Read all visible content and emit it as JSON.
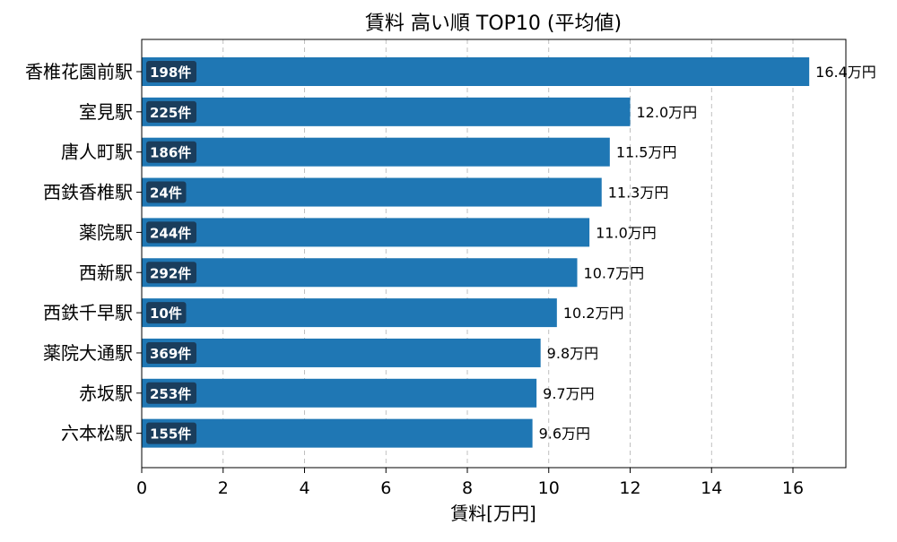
{
  "chart_data": {
    "type": "bar",
    "orientation": "horizontal",
    "title": "賃料 高い順 TOP10 (平均値)",
    "xlabel": "賃料[万円]",
    "ylabel": "",
    "xlim": [
      0,
      17.3
    ],
    "xticks": [
      0,
      2,
      4,
      6,
      8,
      10,
      12,
      14,
      16
    ],
    "grid": "x-dashed",
    "value_suffix": "万円",
    "count_suffix": "件",
    "bar_color": "#1f77b4",
    "badge_color": "#1a3d5c",
    "categories": [
      "香椎花園前駅",
      "室見駅",
      "唐人町駅",
      "西鉄香椎駅",
      "薬院駅",
      "西新駅",
      "西鉄千早駅",
      "薬院大通駅",
      "赤坂駅",
      "六本松駅"
    ],
    "values": [
      16.4,
      12.0,
      11.5,
      11.3,
      11.0,
      10.7,
      10.2,
      9.8,
      9.7,
      9.6
    ],
    "counts": [
      198,
      225,
      186,
      24,
      244,
      292,
      10,
      369,
      253,
      155
    ]
  }
}
